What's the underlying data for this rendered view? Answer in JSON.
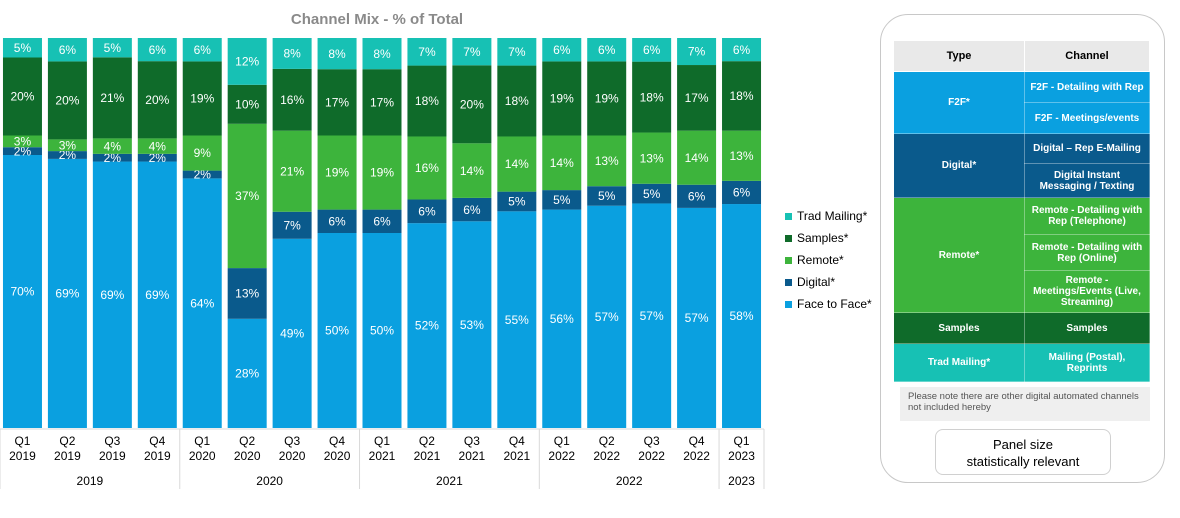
{
  "chart_data": {
    "type": "bar",
    "stacked": true,
    "title": "Channel Mix - %  of Total",
    "categories": [
      "Q1 2019",
      "Q2 2019",
      "Q3 2019",
      "Q4 2019",
      "Q1 2020",
      "Q2 2020",
      "Q3 2020",
      "Q4 2020",
      "Q1 2021",
      "Q2 2021",
      "Q3 2021",
      "Q4 2021",
      "Q1 2022",
      "Q2 2022",
      "Q3 2022",
      "Q4 2022",
      "Q1 2023"
    ],
    "quarter_labels": [
      "Q1",
      "Q2",
      "Q3",
      "Q4",
      "Q1",
      "Q2",
      "Q3",
      "Q4",
      "Q1",
      "Q2",
      "Q3",
      "Q4",
      "Q1",
      "Q2",
      "Q3",
      "Q4",
      "Q1"
    ],
    "year_labels": [
      "2019",
      "2019",
      "2019",
      "2019",
      "2020",
      "2020",
      "2020",
      "2020",
      "2021",
      "2021",
      "2021",
      "2021",
      "2022",
      "2022",
      "2022",
      "2022",
      "2023"
    ],
    "year_groups": [
      {
        "label": "2019",
        "start": 0,
        "end": 3
      },
      {
        "label": "2020",
        "start": 4,
        "end": 7
      },
      {
        "label": "2021",
        "start": 8,
        "end": 11
      },
      {
        "label": "2022",
        "start": 12,
        "end": 15
      },
      {
        "label": "2023",
        "start": 16,
        "end": 16
      }
    ],
    "series": [
      {
        "name": "Face to Face*",
        "color": "#0aa0e0",
        "values": [
          70,
          69,
          69,
          69,
          64,
          28,
          49,
          50,
          50,
          52,
          53,
          55,
          56,
          57,
          57,
          57,
          58
        ]
      },
      {
        "name": "Digital*",
        "color": "#0a5a8c",
        "values": [
          2,
          2,
          2,
          2,
          2,
          13,
          7,
          6,
          6,
          6,
          6,
          5,
          5,
          5,
          5,
          6,
          6
        ]
      },
      {
        "name": "Remote*",
        "color": "#3db43c",
        "values": [
          3,
          3,
          4,
          4,
          9,
          37,
          21,
          19,
          19,
          16,
          14,
          14,
          14,
          13,
          13,
          14,
          13
        ]
      },
      {
        "name": "Samples*",
        "color": "#0f6b2a",
        "values": [
          20,
          20,
          21,
          20,
          19,
          10,
          16,
          17,
          17,
          18,
          20,
          18,
          19,
          19,
          18,
          17,
          18
        ]
      },
      {
        "name": "Trad Mailing*",
        "color": "#17c1b4",
        "values": [
          5,
          6,
          5,
          6,
          6,
          12,
          8,
          8,
          8,
          7,
          7,
          7,
          6,
          6,
          6,
          7,
          6
        ]
      }
    ],
    "ylim": [
      0,
      100
    ],
    "grid": false,
    "legend_position": "right",
    "legend_order": [
      "Trad Mailing*",
      "Samples*",
      "Remote*",
      "Digital*",
      "Face to Face*"
    ]
  },
  "legend": {
    "items": [
      {
        "label": "Trad Mailing*",
        "color": "#17c1b4"
      },
      {
        "label": "Samples*",
        "color": "#0f6b2a"
      },
      {
        "label": "Remote*",
        "color": "#3db43c"
      },
      {
        "label": "Digital*",
        "color": "#0a5a8c"
      },
      {
        "label": "Face to Face*",
        "color": "#0aa0e0"
      }
    ]
  },
  "panel": {
    "header_type": "Type",
    "header_channel": "Channel",
    "groups": [
      {
        "type": "F2F*",
        "color": "#0aa0e0",
        "channels": [
          "F2F - Detailing with Rep",
          "F2F -  Meetings/events"
        ]
      },
      {
        "type": "Digital*",
        "color": "#0a5a8c",
        "channels": [
          "Digital – Rep E-Mailing",
          "Digital Instant Messaging / Texting"
        ]
      },
      {
        "type": "Remote*",
        "color": "#3db43c",
        "channels": [
          "Remote - Detailing with Rep (Telephone)",
          "Remote - Detailing with Rep (Online)",
          "Remote - Meetings/Events (Live, Streaming)"
        ]
      },
      {
        "type": "Samples",
        "color": "#0f6b2a",
        "channels": [
          "Samples"
        ]
      },
      {
        "type": "Trad Mailing*",
        "color": "#17c1b4",
        "channels": [
          "Mailing (Postal), Reprints"
        ]
      }
    ],
    "note": "Please note there are other digital automated channels not included hereby",
    "button_line1": "Panel size",
    "button_line2": "statistically relevant"
  }
}
